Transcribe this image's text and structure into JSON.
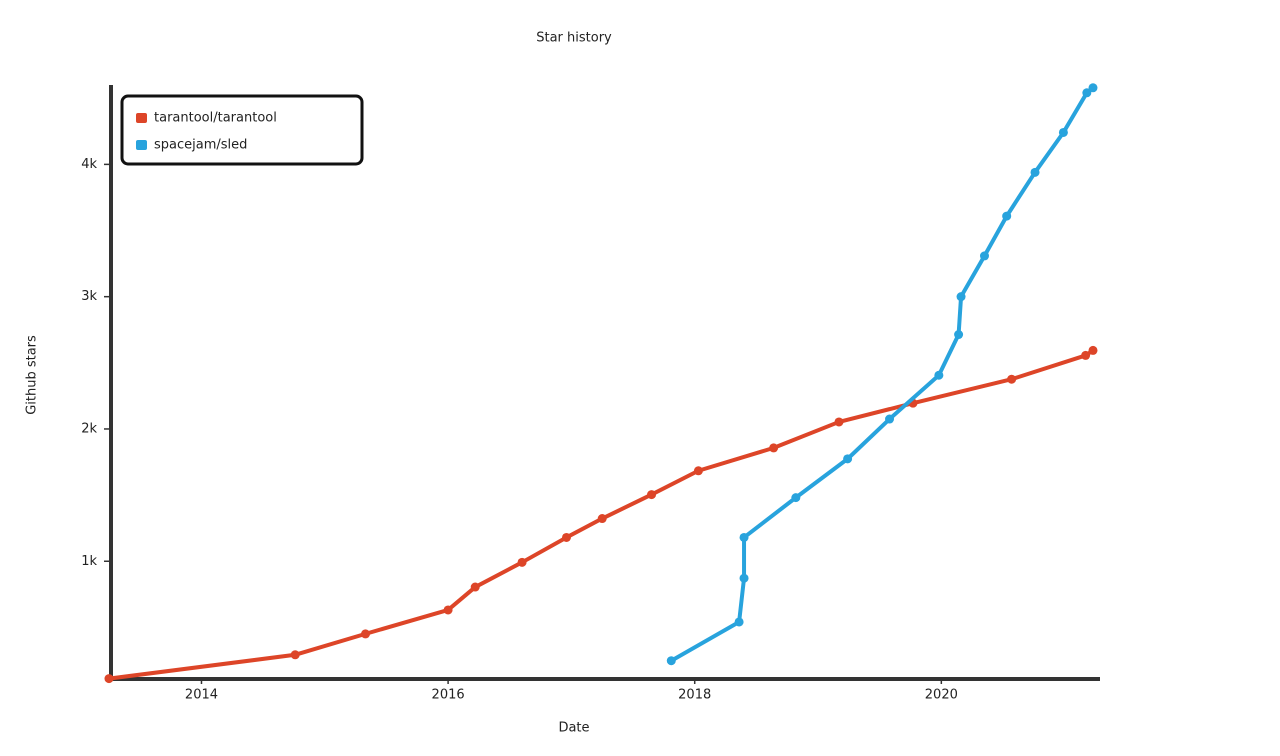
{
  "chart_data": {
    "type": "line",
    "title": "Star history",
    "xlabel": "Date",
    "ylabel": "Github stars",
    "xlim": [
      2013.25,
      2021.23
    ],
    "xticks": [
      2014,
      2016,
      2018,
      2020
    ],
    "ylim": [
      110,
      4600
    ],
    "yticks": [
      {
        "value": 1000,
        "label": "1k"
      },
      {
        "value": 2000,
        "label": "2k"
      },
      {
        "value": 3000,
        "label": "3k"
      },
      {
        "value": 4000,
        "label": "4k"
      }
    ],
    "legend": "upper left",
    "series": [
      {
        "name": "tarantool/tarantool",
        "color": "#dd4528",
        "x": [
          2013.25,
          2014.76,
          2015.33,
          2016.0,
          2016.22,
          2016.6,
          2016.96,
          2017.25,
          2017.65,
          2018.03,
          2018.64,
          2019.17,
          2019.77,
          2020.57,
          2021.17,
          2021.23
        ],
        "values": [
          113,
          293,
          451,
          632,
          805,
          992,
          1180,
          1323,
          1504,
          1684,
          1857,
          2053,
          2195,
          2376,
          2556,
          2594
        ]
      },
      {
        "name": "spacejam/sled",
        "color": "#28a3dd",
        "x": [
          2017.81,
          2018.36,
          2018.4,
          2018.4,
          2018.82,
          2019.24,
          2019.58,
          2019.98,
          2020.14,
          2020.16,
          2020.35,
          2020.53,
          2020.76,
          2020.99,
          2021.18,
          2021.23
        ],
        "values": [
          248,
          541,
          872,
          1180,
          1481,
          1774,
          2075,
          2406,
          2714,
          3000,
          3308,
          3609,
          3940,
          4241,
          4541,
          4579
        ]
      }
    ]
  }
}
